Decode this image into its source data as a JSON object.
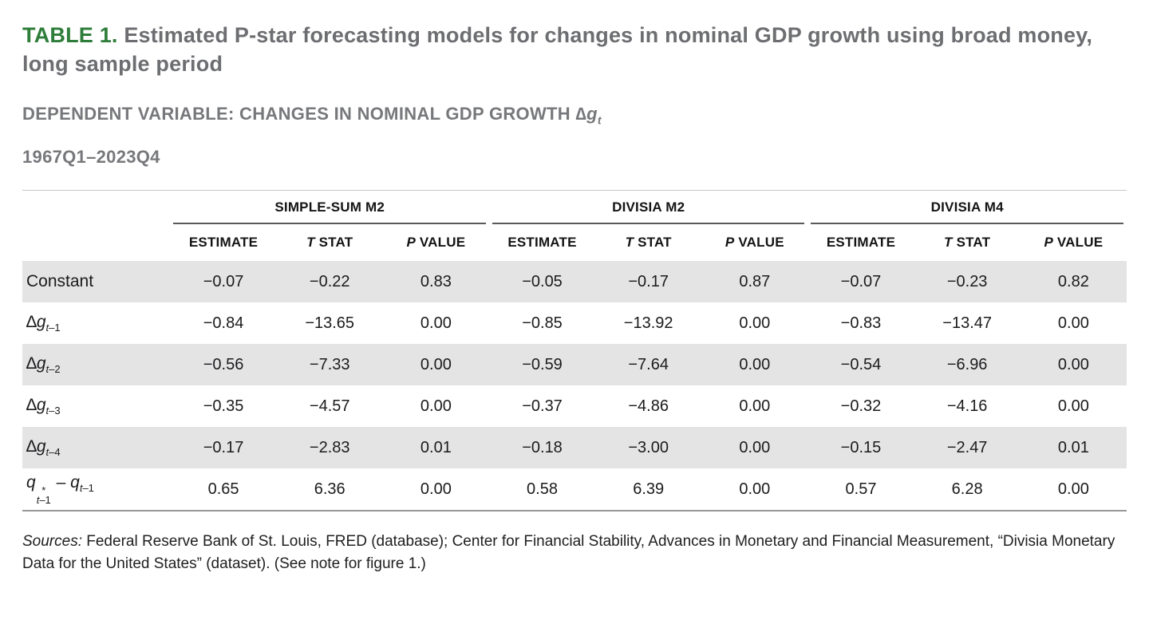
{
  "header": {
    "table_label": "TABLE 1.",
    "title": "Estimated P-star forecasting models for changes in nominal GDP growth using broad money, long sample period",
    "dependent_label": "DEPENDENT VARIABLE: CHANGES IN NOMINAL GDP GROWTH",
    "dependent_var": {
      "delta": "∆",
      "symbol": "g",
      "subscript": "t"
    },
    "period": "1967Q1–2023Q4"
  },
  "colors": {
    "accent_green": "#2e7d3a",
    "title_gray": "#6d6e71",
    "row_shade": "#e4e4e5",
    "rule_dark": "#58595b",
    "rule_light": "#c6c7c9"
  },
  "table": {
    "groups": [
      {
        "label": "SIMPLE-SUM M2"
      },
      {
        "label": "DIVISIA M2"
      },
      {
        "label": "DIVISIA M4"
      }
    ],
    "columns": [
      {
        "i": "",
        "t": "ESTIMATE"
      },
      {
        "i": "T",
        "t": " STAT"
      },
      {
        "i": "P",
        "t": " VALUE"
      },
      {
        "i": "",
        "t": "ESTIMATE"
      },
      {
        "i": "T",
        "t": " STAT"
      },
      {
        "i": "P",
        "t": " VALUE"
      },
      {
        "i": "",
        "t": "ESTIMATE"
      },
      {
        "i": "T",
        "t": " STAT"
      },
      {
        "i": "P",
        "t": " VALUE"
      }
    ],
    "rows": [
      {
        "shaded": true,
        "label": {
          "type": "plain",
          "text": "Constant"
        },
        "values": [
          "−0.07",
          "−0.22",
          "0.83",
          "−0.05",
          "−0.17",
          "0.87",
          "−0.07",
          "−0.23",
          "0.82"
        ]
      },
      {
        "shaded": false,
        "label": {
          "type": "dg",
          "delta": "∆",
          "symbol": "g",
          "sub_var": "t",
          "sub_rest": "–1"
        },
        "values": [
          "−0.84",
          "−13.65",
          "0.00",
          "−0.85",
          "−13.92",
          "0.00",
          "−0.83",
          "−13.47",
          "0.00"
        ]
      },
      {
        "shaded": true,
        "label": {
          "type": "dg",
          "delta": "∆",
          "symbol": "g",
          "sub_var": "t",
          "sub_rest": "–2"
        },
        "values": [
          "−0.56",
          "−7.33",
          "0.00",
          "−0.59",
          "−7.64",
          "0.00",
          "−0.54",
          "−6.96",
          "0.00"
        ]
      },
      {
        "shaded": false,
        "label": {
          "type": "dg",
          "delta": "∆",
          "symbol": "g",
          "sub_var": "t",
          "sub_rest": "–3"
        },
        "values": [
          "−0.35",
          "−4.57",
          "0.00",
          "−0.37",
          "−4.86",
          "0.00",
          "−0.32",
          "−4.16",
          "0.00"
        ]
      },
      {
        "shaded": true,
        "label": {
          "type": "dg",
          "delta": "∆",
          "symbol": "g",
          "sub_var": "t",
          "sub_rest": "–4"
        },
        "values": [
          "−0.17",
          "−2.83",
          "0.01",
          "−0.18",
          "−3.00",
          "0.00",
          "−0.15",
          "−2.47",
          "0.01"
        ]
      },
      {
        "shaded": false,
        "label": {
          "type": "qstar",
          "symbol": "q",
          "sup": "*",
          "sub_var": "t",
          "sub_rest": "–1",
          "operator": " – "
        },
        "values": [
          "0.65",
          "6.36",
          "0.00",
          "0.58",
          "6.39",
          "0.00",
          "0.57",
          "6.28",
          "0.00"
        ]
      }
    ]
  },
  "sources": {
    "label": "Sources:",
    "text": " Federal Reserve Bank of St. Louis, FRED (database); Center for Financial Stability, Advances in Monetary and Financial Measurement, “Divisia Monetary Data for the United States” (dataset). (See note for figure 1.)"
  }
}
